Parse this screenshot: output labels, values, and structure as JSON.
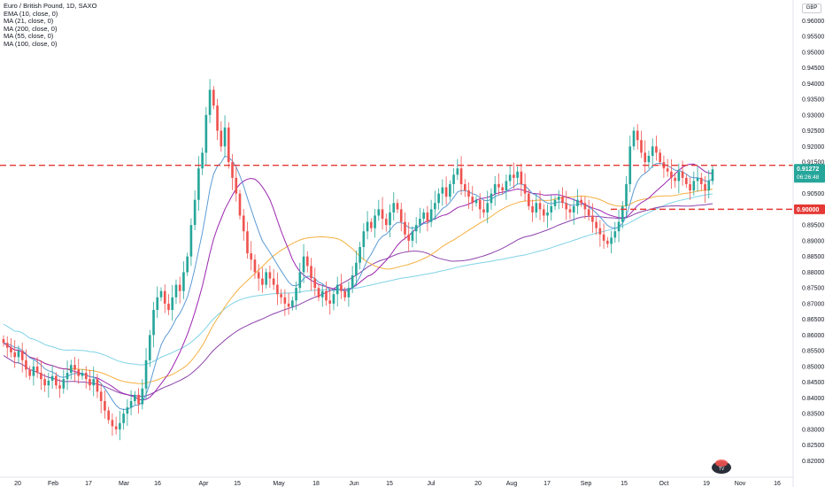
{
  "legend": {
    "title": "Euro / British Pound, 1D, SAXO",
    "indicators": [
      {
        "label": "EMA (10, close, 0)",
        "color": "#5b9bd5"
      },
      {
        "label": "MA (21, close, 0)",
        "color": "#9c27b0"
      },
      {
        "label": "MA (200, close, 0)",
        "color": "#8e44ad"
      },
      {
        "label": "MA (55, close, 0)",
        "color": "#f5b041"
      },
      {
        "label": "MA (100, close, 0)",
        "color": "#7fd3e6"
      }
    ]
  },
  "currency": "GBP",
  "chart_data": {
    "type": "candlestick",
    "y_ticks": [
      "0.96000",
      "0.95500",
      "0.95000",
      "0.94500",
      "0.94000",
      "0.93500",
      "0.93000",
      "0.92500",
      "0.92000",
      "0.91500",
      "0.91000",
      "0.90500",
      "0.90000",
      "0.89500",
      "0.89000",
      "0.88500",
      "0.88000",
      "0.87500",
      "0.87000",
      "0.86500",
      "0.86000",
      "0.85500",
      "0.85000",
      "0.84500",
      "0.84000",
      "0.83500",
      "0.83000",
      "0.82500",
      "0.82000"
    ],
    "ylim": [
      0.819,
      0.9615
    ],
    "x_ticks": [
      "20",
      "Feb",
      "17",
      "Mar",
      "16",
      "Apr",
      "15",
      "May",
      "18",
      "Jun",
      "15",
      "Jul",
      "20",
      "Aug",
      "17",
      "Sep",
      "15",
      "Oct",
      "19",
      "Nov",
      "16"
    ],
    "price_label": {
      "value": "0.91272",
      "timer": "06:26:48",
      "color": "#26a69a"
    },
    "level_label": {
      "value": "0.90000",
      "color": "#e53935"
    },
    "horizontal_lines": [
      {
        "y": 0.914,
        "color": "#e53935",
        "style": "dashed"
      },
      {
        "y": 0.9,
        "color": "#e53935",
        "style": "dashed"
      }
    ],
    "colors": {
      "up": "#26a69a",
      "down": "#ef5350"
    },
    "ohlc_close": [
      0.8575,
      0.856,
      0.8545,
      0.853,
      0.855,
      0.852,
      0.849,
      0.847,
      0.85,
      0.848,
      0.846,
      0.844,
      0.8455,
      0.847,
      0.844,
      0.843,
      0.846,
      0.848,
      0.8505,
      0.849,
      0.847,
      0.848,
      0.846,
      0.844,
      0.846,
      0.842,
      0.839,
      0.836,
      0.833,
      0.831,
      0.83,
      0.832,
      0.835,
      0.837,
      0.839,
      0.841,
      0.838,
      0.843,
      0.852,
      0.86,
      0.868,
      0.872,
      0.874,
      0.87,
      0.868,
      0.872,
      0.876,
      0.874,
      0.88,
      0.885,
      0.895,
      0.903,
      0.913,
      0.918,
      0.93,
      0.938,
      0.933,
      0.925,
      0.92,
      0.926,
      0.915,
      0.91,
      0.905,
      0.898,
      0.893,
      0.886,
      0.884,
      0.88,
      0.878,
      0.876,
      0.88,
      0.878,
      0.876,
      0.873,
      0.872,
      0.87,
      0.869,
      0.871,
      0.875,
      0.88,
      0.885,
      0.882,
      0.878,
      0.875,
      0.872,
      0.874,
      0.871,
      0.87,
      0.873,
      0.876,
      0.874,
      0.872,
      0.875,
      0.879,
      0.883,
      0.888,
      0.893,
      0.896,
      0.894,
      0.898,
      0.9,
      0.897,
      0.895,
      0.899,
      0.902,
      0.9,
      0.896,
      0.892,
      0.89,
      0.893,
      0.895,
      0.897,
      0.899,
      0.896,
      0.9,
      0.902,
      0.905,
      0.907,
      0.904,
      0.908,
      0.911,
      0.913,
      0.908,
      0.906,
      0.904,
      0.902,
      0.903,
      0.9,
      0.899,
      0.902,
      0.905,
      0.908,
      0.907,
      0.906,
      0.909,
      0.911,
      0.91,
      0.912,
      0.908,
      0.905,
      0.901,
      0.899,
      0.902,
      0.9,
      0.898,
      0.899,
      0.901,
      0.903,
      0.904,
      0.902,
      0.9,
      0.899,
      0.901,
      0.903,
      0.902,
      0.9,
      0.898,
      0.896,
      0.894,
      0.892,
      0.89,
      0.889,
      0.891,
      0.893,
      0.896,
      0.901,
      0.908,
      0.92,
      0.925,
      0.922,
      0.918,
      0.915,
      0.917,
      0.92,
      0.918,
      0.915,
      0.913,
      0.912,
      0.91,
      0.909,
      0.912,
      0.91,
      0.908,
      0.906,
      0.909,
      0.91,
      0.908,
      0.906,
      0.909,
      0.9127
    ]
  }
}
